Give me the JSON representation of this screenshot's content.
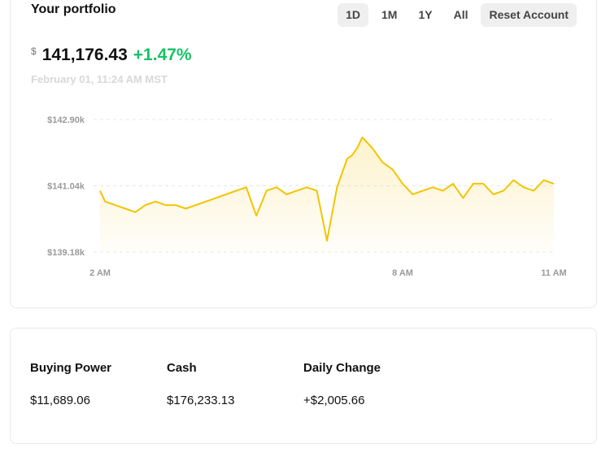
{
  "portfolio": {
    "title": "Your portfolio",
    "currency_symbol": "$",
    "value": "141,176.43",
    "change": "+1.47%",
    "timestamp": "February 01, 11:24 AM MST",
    "ranges": [
      {
        "label": "1D",
        "active": true
      },
      {
        "label": "1M",
        "active": false
      },
      {
        "label": "1Y",
        "active": false
      },
      {
        "label": "All",
        "active": false
      }
    ],
    "reset_label": "Reset Account"
  },
  "chart_data": {
    "type": "area",
    "title": "",
    "xlabel": "",
    "ylabel": "",
    "x_ticks": [
      "2 AM",
      "8 AM",
      "11 AM"
    ],
    "y_ticks": [
      "$142.90k",
      "$141.04k",
      "$139.18k"
    ],
    "ylim": [
      139.18,
      142.9
    ],
    "grid": true,
    "line_color": "#f4c400",
    "series": [
      {
        "name": "",
        "x": [
          2.0,
          2.1,
          2.3,
          2.5,
          2.7,
          2.9,
          3.1,
          3.3,
          3.5,
          3.7,
          3.9,
          4.1,
          4.3,
          4.5,
          4.7,
          4.9,
          5.1,
          5.3,
          5.5,
          5.7,
          5.9,
          6.1,
          6.3,
          6.5,
          6.7,
          6.9,
          7.0,
          7.1,
          7.2,
          7.4,
          7.6,
          7.8,
          8.0,
          8.2,
          8.4,
          8.6,
          8.8,
          9.0,
          9.2,
          9.4,
          9.6,
          9.8,
          10.0,
          10.2,
          10.4,
          10.6,
          10.8,
          11.0
        ],
        "values": [
          140.9,
          140.6,
          140.5,
          140.4,
          140.3,
          140.5,
          140.6,
          140.5,
          140.5,
          140.4,
          140.5,
          140.6,
          140.7,
          140.8,
          140.9,
          141.0,
          140.2,
          140.9,
          141.0,
          140.8,
          140.9,
          141.0,
          140.9,
          139.5,
          141.0,
          141.8,
          141.9,
          142.1,
          142.4,
          142.1,
          141.7,
          141.5,
          141.1,
          140.8,
          140.9,
          141.0,
          140.9,
          141.1,
          140.7,
          141.1,
          141.1,
          140.8,
          140.9,
          141.2,
          141.0,
          140.9,
          141.2,
          141.1
        ]
      }
    ]
  },
  "stats": [
    {
      "label": "Buying Power",
      "value": "$11,689.06"
    },
    {
      "label": "Cash",
      "value": "$176,233.13"
    },
    {
      "label": "Daily Change",
      "value": "+$2,005.66"
    }
  ]
}
